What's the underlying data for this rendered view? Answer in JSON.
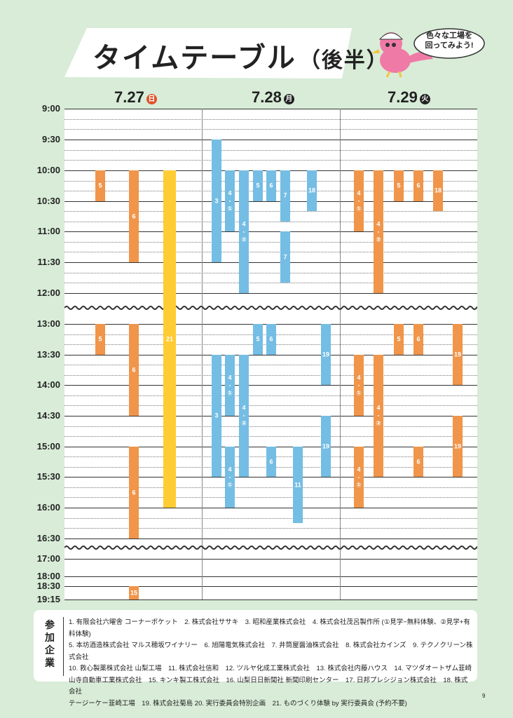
{
  "header": {
    "title": "タイムテーブル",
    "subtitle": "（後半）",
    "bubble_line1": "色々な工場を",
    "bubble_line2": "回ってみよう!"
  },
  "days": [
    {
      "date": "7.27",
      "weekday": "日",
      "color": "#e0532b"
    },
    {
      "date": "7.28",
      "weekday": "月",
      "color": "#222222"
    },
    {
      "date": "7.29",
      "weekday": "火",
      "color": "#222222"
    }
  ],
  "time_labels": [
    "9:00",
    "9:30",
    "10:00",
    "10:30",
    "11:00",
    "11:30",
    "12:00",
    "13:00",
    "13:30",
    "14:00",
    "14:30",
    "15:00",
    "15:30",
    "16:00",
    "16:30",
    "17:00",
    "18:00",
    "18:30",
    "19:15"
  ],
  "colors": {
    "orange": "#f0954a",
    "blue": "#74bde4",
    "yellow": "#ffcc33",
    "background": "#d8ecd8"
  },
  "sessions": [
    {
      "day": "7.27",
      "label": "5",
      "start": "10:00",
      "end": "10:30",
      "color": "orange"
    },
    {
      "day": "7.27",
      "label": "6",
      "start": "10:00",
      "end": "11:30",
      "color": "orange"
    },
    {
      "day": "7.27",
      "label": "21",
      "start": "10:00",
      "end": "16:00",
      "color": "yellow"
    },
    {
      "day": "7.27",
      "label": "5",
      "start": "13:00",
      "end": "13:30",
      "color": "orange"
    },
    {
      "day": "7.27",
      "label": "6",
      "start": "13:00",
      "end": "14:30",
      "color": "orange"
    },
    {
      "day": "7.27",
      "label": "6",
      "start": "15:00",
      "end": "16:30",
      "color": "orange"
    },
    {
      "day": "7.27",
      "label": "15",
      "start": "18:30",
      "end": "19:15",
      "color": "orange"
    },
    {
      "day": "7.28",
      "label": "3",
      "start": "9:30",
      "end": "11:30",
      "color": "blue"
    },
    {
      "day": "7.28",
      "label": "4\n-\n①",
      "start": "10:00",
      "end": "11:00",
      "color": "blue"
    },
    {
      "day": "7.28",
      "label": "4\n-\n②",
      "start": "10:00",
      "end": "12:00",
      "color": "blue"
    },
    {
      "day": "7.28",
      "label": "5",
      "start": "10:00",
      "end": "10:30",
      "color": "blue"
    },
    {
      "day": "7.28",
      "label": "6",
      "start": "10:00",
      "end": "10:30",
      "color": "blue"
    },
    {
      "day": "7.28",
      "label": "7",
      "start": "10:00",
      "end": "10:50",
      "color": "blue"
    },
    {
      "day": "7.28",
      "label": "7",
      "start": "11:00",
      "end": "11:50",
      "color": "blue"
    },
    {
      "day": "7.28",
      "label": "18",
      "start": "10:00",
      "end": "10:40",
      "color": "blue"
    },
    {
      "day": "7.28",
      "label": "5",
      "start": "13:00",
      "end": "13:30",
      "color": "blue"
    },
    {
      "day": "7.28",
      "label": "6",
      "start": "13:00",
      "end": "13:30",
      "color": "blue"
    },
    {
      "day": "7.28",
      "label": "19",
      "start": "13:00",
      "end": "14:00",
      "color": "blue"
    },
    {
      "day": "7.28",
      "label": "3",
      "start": "13:30",
      "end": "15:30",
      "color": "blue"
    },
    {
      "day": "7.28",
      "label": "4\n-\n①",
      "start": "13:30",
      "end": "14:30",
      "color": "blue"
    },
    {
      "day": "7.28",
      "label": "4\n-\n②",
      "start": "13:30",
      "end": "15:30",
      "color": "blue"
    },
    {
      "day": "7.28",
      "label": "19",
      "start": "14:30",
      "end": "15:30",
      "color": "blue"
    },
    {
      "day": "7.28",
      "label": "4\n-\n①",
      "start": "15:00",
      "end": "16:00",
      "color": "blue"
    },
    {
      "day": "7.28",
      "label": "6",
      "start": "15:00",
      "end": "15:30",
      "color": "blue"
    },
    {
      "day": "7.28",
      "label": "11",
      "start": "15:00",
      "end": "16:15",
      "color": "blue"
    },
    {
      "day": "7.29",
      "label": "4\n-\n①",
      "start": "10:00",
      "end": "11:00",
      "color": "orange"
    },
    {
      "day": "7.29",
      "label": "4\n-\n②",
      "start": "10:00",
      "end": "12:00",
      "color": "orange"
    },
    {
      "day": "7.29",
      "label": "5",
      "start": "10:00",
      "end": "10:30",
      "color": "orange"
    },
    {
      "day": "7.29",
      "label": "6",
      "start": "10:00",
      "end": "10:30",
      "color": "orange"
    },
    {
      "day": "7.29",
      "label": "18",
      "start": "10:00",
      "end": "10:40",
      "color": "orange"
    },
    {
      "day": "7.29",
      "label": "5",
      "start": "13:00",
      "end": "13:30",
      "color": "orange"
    },
    {
      "day": "7.29",
      "label": "6",
      "start": "13:00",
      "end": "13:30",
      "color": "orange"
    },
    {
      "day": "7.29",
      "label": "19",
      "start": "13:00",
      "end": "14:00",
      "color": "orange"
    },
    {
      "day": "7.29",
      "label": "4\n-\n①",
      "start": "13:30",
      "end": "14:30",
      "color": "orange"
    },
    {
      "day": "7.29",
      "label": "4\n-\n②",
      "start": "13:30",
      "end": "15:30",
      "color": "orange"
    },
    {
      "day": "7.29",
      "label": "19",
      "start": "14:30",
      "end": "15:30",
      "color": "orange"
    },
    {
      "day": "7.29",
      "label": "4\n-\n①",
      "start": "15:00",
      "end": "16:00",
      "color": "orange"
    },
    {
      "day": "7.29",
      "label": "6",
      "start": "15:00",
      "end": "15:30",
      "color": "orange"
    }
  ],
  "legend": {
    "heading": "参加企業",
    "lines": [
      "1. 有限会社六曜舎 コーナーポケット　2. 株式会社ササキ　3. 昭和産業株式会社　4. 株式会社茂呂製作所 (①見学−無料体験、②見学+有料体験)",
      "5. 本坊酒造株式会社 マルス穂坂ワイナリー　6. 旭陽電気株式会社　7. 井筒屋醤油株式会社　8. 株式会社カインズ　9. テクノクリーン株式会社",
      "10. 救心製薬株式会社 山梨工場　11. 株式会社信和　12. ツルヤ化成工業株式会社　13. 株式会社内藤ハウス　14. マツダオートザム韮崎",
      "山寺自動車工業株式会社　15. キンキ製工株式会社　16. 山梨日日新聞社 新聞印刷センター　17. 日邦プレシジョン株式会社　18. 株式会社",
      "テージーケー韮崎工場　19. 株式会社菊島 20. 実行委員会特別企画　21. ものづくり体験 by 実行委員会 (予約不要)"
    ]
  },
  "page_number": "9"
}
